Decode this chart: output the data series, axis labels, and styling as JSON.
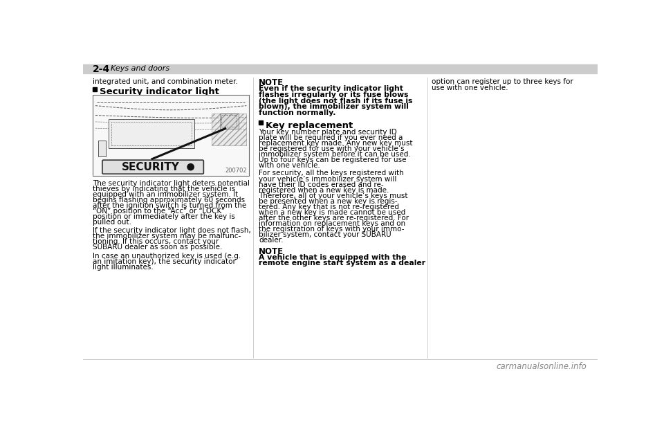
{
  "bg_color": "#ffffff",
  "header_bg": "#cccccc",
  "header_text": "2-4",
  "header_subtext": "Keys and doors",
  "col1_intro": "integrated unit, and combination meter.",
  "col1_section_title": "Security indicator light",
  "col1_img_label": "SECURITY",
  "col1_img_code": "200702",
  "col1_para1": "The security indicator light deters potential\nthieves by indicating that the vehicle is\nequipped with an immobilizer system. It\nbegins flashing approximately 60 seconds\nafter the ignition switch is turned from the\n“ON” position to the “Acc” or “LOCK”\nposition or immediately after the key is\npulled out.",
  "col1_para2": "If the security indicator light does not flash,\nthe immobilizer system may be malfunc-\ntioning. If this occurs, contact your\nSUBARU dealer as soon as possible.",
  "col1_para3": "In case an unauthorized key is used (e.g.\nan imitation key), the security indicator\nlight illuminates.",
  "col2_note_title": "NOTE",
  "col2_note_body": "Even if the security indicator light\nflashes irregularly or its fuse blows\n(the light does not flash if its fuse is\nblown), the immobilizer system will\nfunction normally.",
  "col2_section_title": "Key replacement",
  "col2_para1": "Your key number plate and security ID\nplate will be required if you ever need a\nreplacement key made. Any new key must\nbe registered for use with your vehicle’s\nimmobilizer system before it can be used.\nUp to four keys can be registered for use\nwith one vehicle.",
  "col2_para2": "For security, all the keys registered with\nyour vehicle’s immobilizer system will\nhave their ID codes erased and re-\nregistered when a new key is made.\nTherefore, all of your vehicle’s keys must\nbe presented when a new key is regis-\ntered. Any key that is not re-registered\nwhen a new key is made cannot be used\nafter the other keys are re-registered. For\ninformation on replacement keys and on\nthe registration of keys with your immo-\nbilizer system, contact your SUBARU\ndealer.",
  "col2_note2_title": "NOTE",
  "col2_note2_body": "A vehicle that is equipped with the\nremote engine start system as a dealer",
  "col3_text": "option can register up to three keys for\nuse with one vehicle.",
  "footer_text": "carmanualsonline.info",
  "divider_color": "#aaaaaa",
  "text_color": "#000000"
}
